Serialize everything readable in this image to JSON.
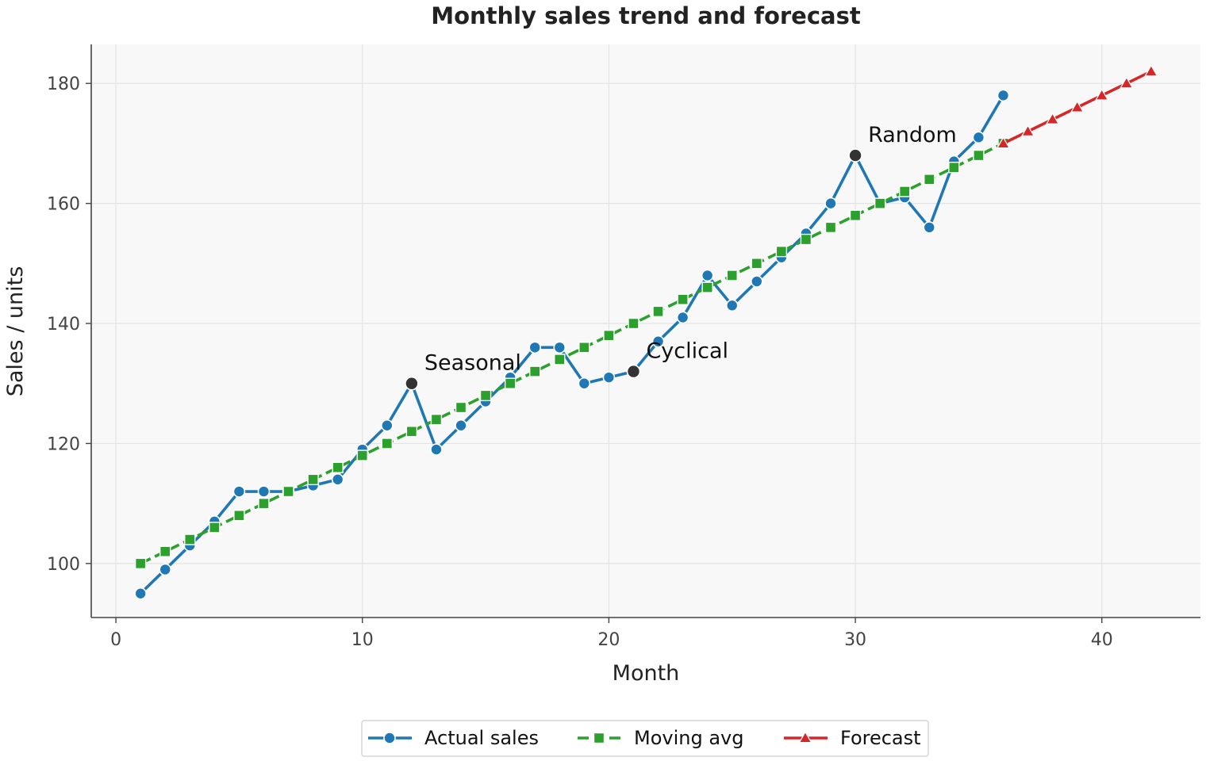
{
  "chart_data": {
    "type": "line",
    "title": "Monthly sales trend and forecast",
    "xlabel": "Month",
    "ylabel": "Sales / units",
    "xlim": [
      -1,
      44
    ],
    "ylim": [
      91,
      186.5
    ],
    "xticks": [
      0,
      10,
      20,
      30,
      40
    ],
    "yticks": [
      100,
      120,
      140,
      160,
      180
    ],
    "grid": true,
    "legend_position": "bottom-center",
    "series": [
      {
        "name": "Actual sales",
        "color": "#1f77b4",
        "marker": "circle",
        "linestyle": "solid",
        "x": [
          1,
          2,
          3,
          4,
          5,
          6,
          7,
          8,
          9,
          10,
          11,
          12,
          13,
          14,
          15,
          16,
          17,
          18,
          19,
          20,
          21,
          22,
          23,
          24,
          25,
          26,
          27,
          28,
          29,
          30,
          31,
          32,
          33,
          34,
          35,
          36
        ],
        "y": [
          95,
          99,
          103,
          107,
          112,
          112,
          112,
          113,
          114,
          119,
          123,
          130,
          119,
          123,
          127,
          131,
          136,
          136,
          130,
          131,
          132,
          137,
          141,
          148,
          143,
          147,
          151,
          155,
          160,
          168,
          160,
          161,
          156,
          167,
          171,
          178
        ]
      },
      {
        "name": "Moving avg",
        "color": "#2ca02c",
        "marker": "square",
        "linestyle": "dashed",
        "x": [
          1,
          2,
          3,
          4,
          5,
          6,
          7,
          8,
          9,
          10,
          11,
          12,
          13,
          14,
          15,
          16,
          17,
          18,
          19,
          20,
          21,
          22,
          23,
          24,
          25,
          26,
          27,
          28,
          29,
          30,
          31,
          32,
          33,
          34,
          35,
          36
        ],
        "y": [
          100,
          102,
          104,
          106,
          108,
          110,
          112,
          114,
          116,
          118,
          120,
          122,
          124,
          126,
          128,
          130,
          132,
          134,
          136,
          138,
          140,
          142,
          144,
          146,
          148,
          150,
          152,
          154,
          156,
          158,
          160,
          162,
          164,
          166,
          168,
          170
        ]
      },
      {
        "name": "Forecast",
        "color": "#d62728",
        "marker": "triangle",
        "linestyle": "solid",
        "x": [
          36,
          37,
          38,
          39,
          40,
          41,
          42
        ],
        "y": [
          170,
          172,
          174,
          176,
          178,
          180,
          182
        ]
      }
    ],
    "annotations": [
      {
        "text": "Seasonal",
        "x": 12,
        "y": 130
      },
      {
        "text": "Cyclical",
        "x": 21,
        "y": 132
      },
      {
        "text": "Random",
        "x": 30,
        "y": 168
      }
    ]
  }
}
